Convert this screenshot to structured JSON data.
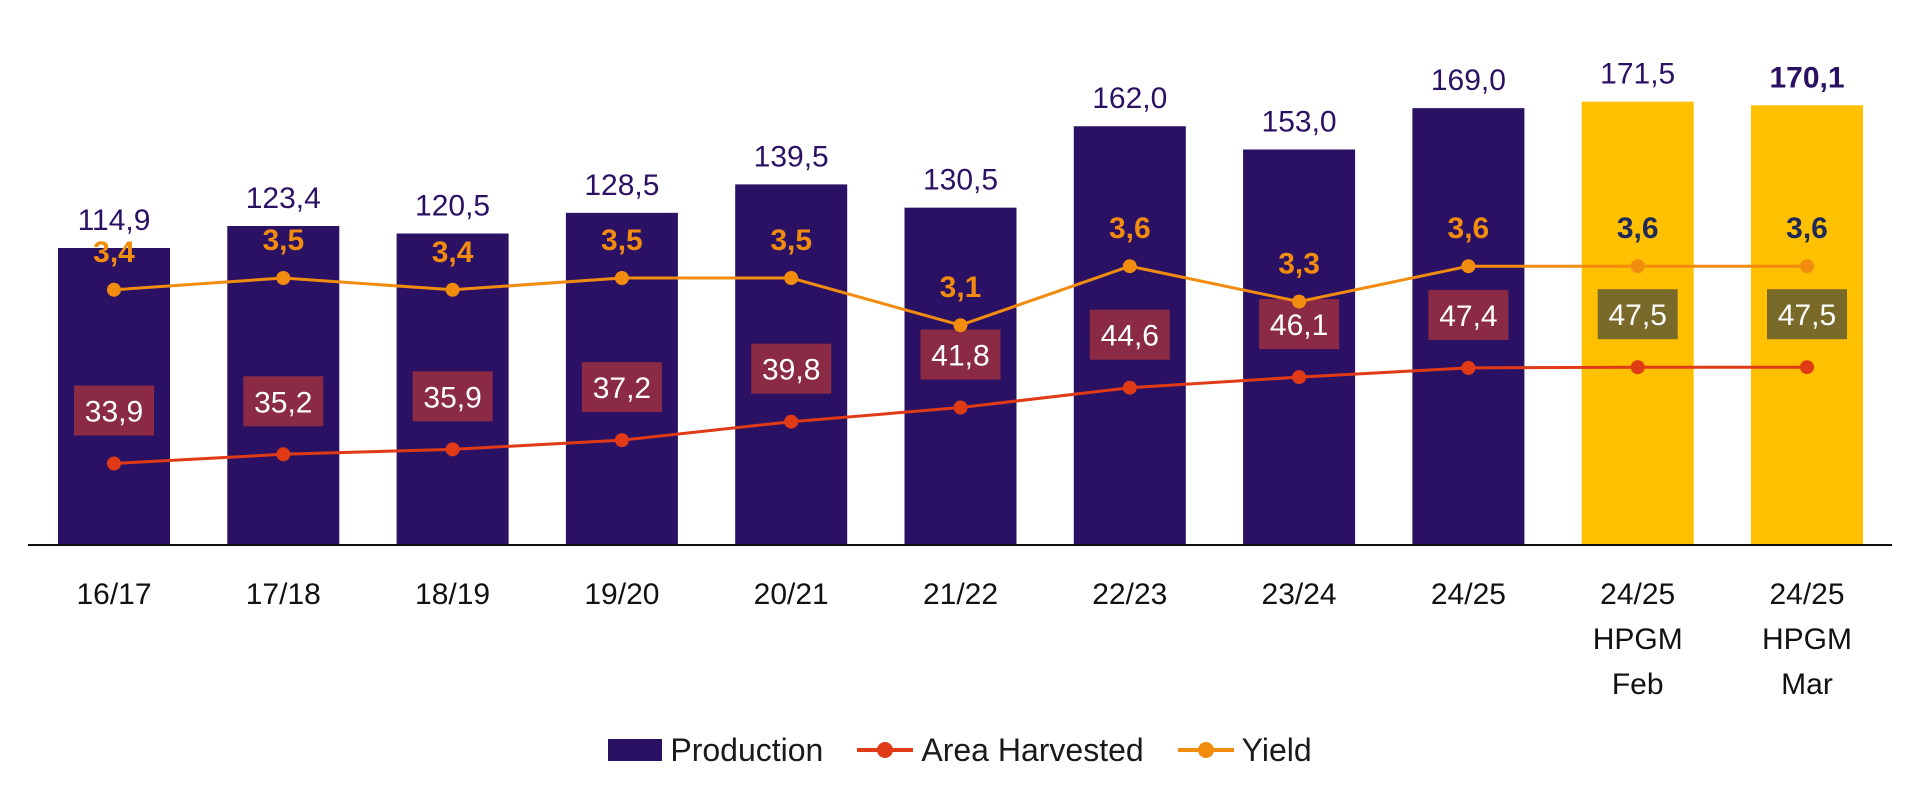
{
  "chart_data": {
    "type": "bar",
    "categories": [
      "16/17",
      "17/18",
      "18/19",
      "19/20",
      "20/21",
      "21/22",
      "22/23",
      "23/24",
      "24/25",
      "24/25\nHPGM\nFeb",
      "24/25\nHPGM\nMar"
    ],
    "series": [
      {
        "name": "Production",
        "type": "bar",
        "values": [
          114.9,
          123.4,
          120.5,
          128.5,
          139.5,
          130.5,
          162.0,
          153.0,
          169.0,
          171.5,
          170.1
        ],
        "labels": [
          "114,9",
          "123,4",
          "120,5",
          "128,5",
          "139,5",
          "130,5",
          "162,0",
          "153,0",
          "169,0",
          "171,5",
          "170,1"
        ],
        "color": "#2b1163",
        "highlight_color": "#ffc000",
        "highlight_from_index": 9
      },
      {
        "name": "Area Harvested",
        "type": "line",
        "values": [
          33.9,
          35.2,
          35.9,
          37.2,
          39.8,
          41.8,
          44.6,
          46.1,
          47.4,
          47.5,
          47.5
        ],
        "labels": [
          "33,9",
          "35,2",
          "35,9",
          "37,2",
          "39,8",
          "41,8",
          "44,6",
          "46,1",
          "47,4",
          "47,5",
          "47,5"
        ],
        "color": "#e03a17",
        "label_box_color": "#8b2a45",
        "label_box_highlight_color": "#7a6a2a"
      },
      {
        "name": "Yield",
        "type": "line",
        "values": [
          3.4,
          3.5,
          3.4,
          3.5,
          3.5,
          3.1,
          3.6,
          3.3,
          3.6,
          3.6,
          3.6
        ],
        "labels": [
          "3,4",
          "3,5",
          "3,4",
          "3,5",
          "3,5",
          "3,1",
          "3,6",
          "3,3",
          "3,6",
          "3,6",
          "3,6"
        ],
        "color": "#f28c0f",
        "label_color": "#f28c0f",
        "label_highlight_color": "#1f2a5a"
      }
    ],
    "title": "",
    "xlabel": "",
    "ylabel": "",
    "ylim": [
      0,
      190
    ],
    "grid": false,
    "legend_placement": "bottom-center"
  }
}
